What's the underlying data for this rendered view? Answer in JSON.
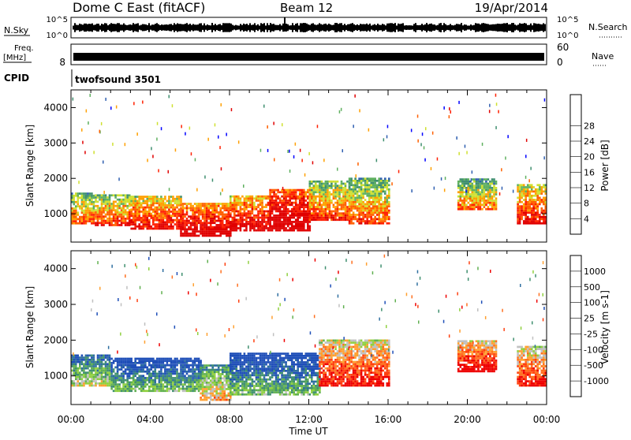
{
  "header": {
    "station": "Dome C East (fitACF)",
    "beam": "Beam 12",
    "date": "19/Apr/2014"
  },
  "status_panels": {
    "nsky_label": "N.Sky",
    "nsky_ticks": [
      "10^5",
      "10^0"
    ],
    "nsearch_label": "N.Search",
    "nsearch_ticks": [
      "10^5",
      "10^0"
    ],
    "freq_label": "Freq.",
    "freq_unit": "[MHz]",
    "freq_ticks": [
      "8"
    ],
    "nave_label": "Nave",
    "nave_ticks": [
      "60",
      "0"
    ],
    "cpid_label": "CPID",
    "cpid_value": "twofsound 3501"
  },
  "time_axis": {
    "label": "Time UT",
    "ticks": [
      "00:00",
      "04:00",
      "08:00",
      "12:00",
      "16:00",
      "20:00",
      "00:00"
    ]
  },
  "chart_data": [
    {
      "type": "heatmap",
      "name": "power",
      "ylabel": "Slant Range [km]",
      "yticks": [
        "1000",
        "2000",
        "3000",
        "4000"
      ],
      "ylim": [
        200,
        4500
      ],
      "xlim_hours": [
        0,
        24
      ],
      "colorbar": {
        "label": "Power [dB]",
        "ticks": [
          "4",
          "8",
          "12",
          "16",
          "20",
          "24",
          "28"
        ],
        "colors": [
          "#0000ff",
          "#2f5fb0",
          "#3f8f6f",
          "#5fb05f",
          "#cfe030",
          "#ffa000",
          "#ff6000",
          "#ff2000",
          "#e00000"
        ]
      },
      "bands": [
        {
          "t": [
            0.0,
            1.2
          ],
          "range": [
            700,
            1600
          ],
          "level": 0.55
        },
        {
          "t": [
            1.2,
            3.0
          ],
          "range": [
            650,
            1550
          ],
          "level": 0.6
        },
        {
          "t": [
            3.0,
            5.5
          ],
          "range": [
            550,
            1500
          ],
          "level": 0.7
        },
        {
          "t": [
            5.5,
            8.0
          ],
          "range": [
            350,
            1300
          ],
          "level": 0.85
        },
        {
          "t": [
            8.0,
            10.0
          ],
          "range": [
            500,
            1500
          ],
          "level": 0.8
        },
        {
          "t": [
            10.0,
            12.0
          ],
          "range": [
            500,
            1700
          ],
          "level": 0.95
        },
        {
          "t": [
            12.0,
            14.0
          ],
          "range": [
            800,
            1900
          ],
          "level": 0.6
        },
        {
          "t": [
            14.0,
            16.0
          ],
          "range": [
            700,
            2000
          ],
          "level": 0.55
        },
        {
          "t": [
            19.5,
            21.5
          ],
          "range": [
            1100,
            2000
          ],
          "level": 0.5
        },
        {
          "t": [
            22.5,
            24.0
          ],
          "range": [
            700,
            1800
          ],
          "level": 0.7
        }
      ]
    },
    {
      "type": "heatmap",
      "name": "velocity",
      "ylabel": "Slant Range [km]",
      "yticks": [
        "1000",
        "2000",
        "3000",
        "4000"
      ],
      "ylim": [
        200,
        4500
      ],
      "xlim_hours": [
        0,
        24
      ],
      "colorbar": {
        "label": "Velocity [m s-1]",
        "ticks": [
          "1000",
          "500",
          "100",
          "25",
          "-25",
          "-100",
          "-500",
          "-1000"
        ],
        "colors": [
          "#1f4fb8",
          "#2f6fa0",
          "#3f8f6f",
          "#60b050",
          "#90d040",
          "#c0c0c0",
          "#ffa030",
          "#ff7020",
          "#ff4010",
          "#ee0000"
        ]
      },
      "bands": [
        {
          "t": [
            0.0,
            2.0
          ],
          "range": [
            700,
            1600
          ],
          "level": 0.3
        },
        {
          "t": [
            2.0,
            6.5
          ],
          "range": [
            550,
            1500
          ],
          "level": 0.15
        },
        {
          "t": [
            6.5,
            8.0
          ],
          "range": [
            300,
            1300
          ],
          "level": 0.45
        },
        {
          "t": [
            8.0,
            12.5
          ],
          "range": [
            450,
            1600
          ],
          "level": 0.15
        },
        {
          "t": [
            12.5,
            16.0
          ],
          "range": [
            700,
            2000
          ],
          "level": 0.75
        },
        {
          "t": [
            19.5,
            21.5
          ],
          "range": [
            1100,
            2000
          ],
          "level": 0.8
        },
        {
          "t": [
            22.5,
            24.0
          ],
          "range": [
            700,
            1800
          ],
          "level": 0.75
        }
      ]
    }
  ]
}
